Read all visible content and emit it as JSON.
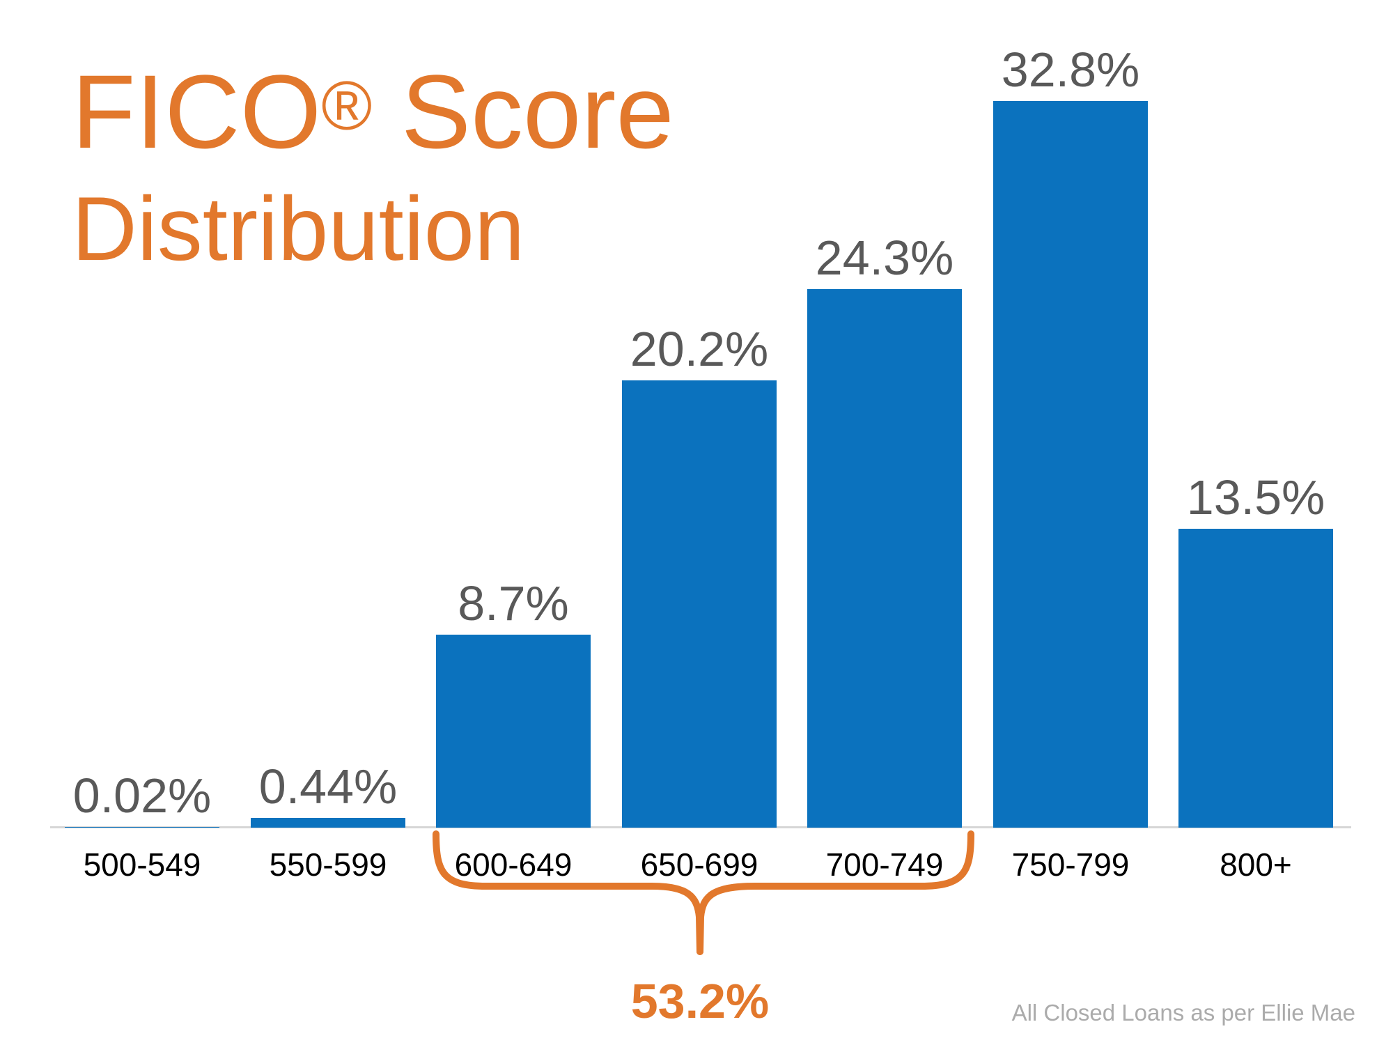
{
  "title": {
    "brand": "FICO",
    "registered_mark": "®",
    "rest": " Score",
    "line2": "Distribution"
  },
  "chart_data": {
    "type": "bar",
    "title": "FICO® Score Distribution",
    "categories": [
      "500-549",
      "550-599",
      "600-649",
      "650-699",
      "700-749",
      "750-799",
      "800+"
    ],
    "values": [
      0.02,
      0.44,
      8.7,
      20.2,
      24.3,
      32.8,
      13.5
    ],
    "value_labels": [
      "0.02%",
      "0.44%",
      "8.7%",
      "20.2%",
      "24.3%",
      "32.8%",
      "13.5%"
    ],
    "unit": "%",
    "xlabel": "",
    "ylabel": "",
    "ylim": [
      0,
      35
    ],
    "grid": false,
    "legend": false,
    "annotation": {
      "label": "53.2%",
      "spans_categories": [
        "600-649",
        "650-699",
        "700-749"
      ]
    },
    "footnote": "All Closed Loans as per Ellie Mae"
  },
  "footer": {
    "source": "All Closed Loans as per Ellie Mae"
  },
  "colors": {
    "accent_orange": "#E2782C",
    "bar_blue": "#0B72BE",
    "value_label_gray": "#595959",
    "axis_label_black": "#000000",
    "axis_line_gray": "#D6D6D6",
    "footnote_gray": "#ABABAB",
    "background": "#FFFFFF"
  }
}
